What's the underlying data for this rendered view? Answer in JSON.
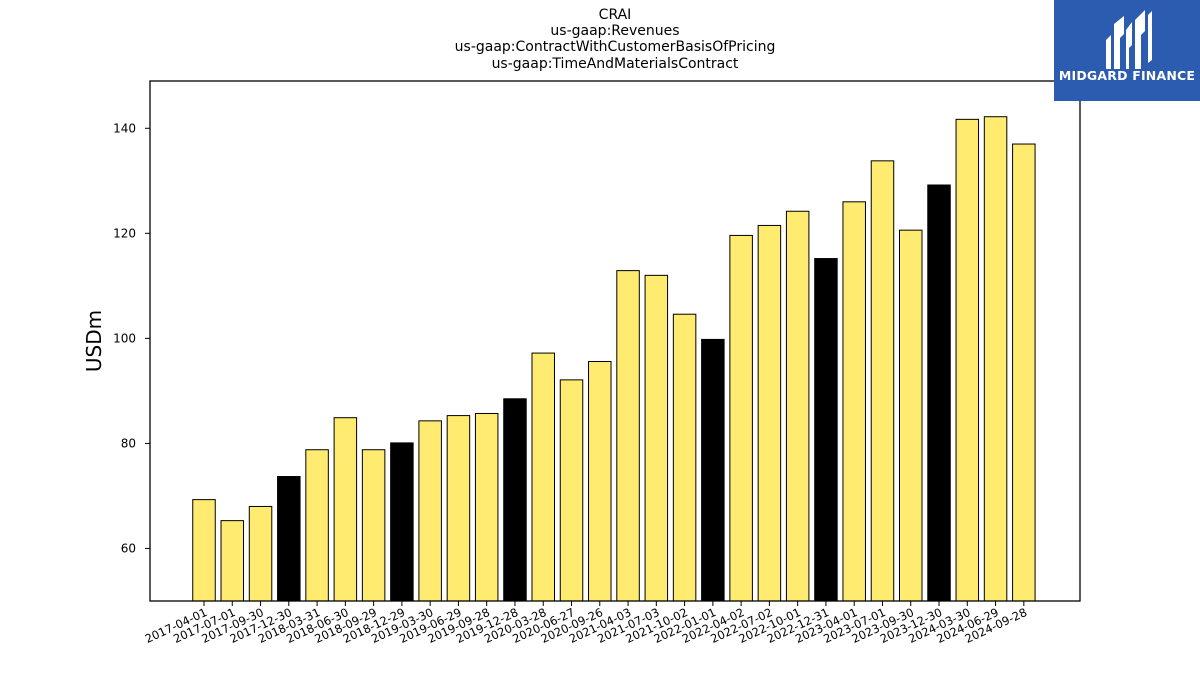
{
  "chart_data": {
    "type": "bar",
    "title_lines": [
      "CRAI",
      "us-gaap:Revenues",
      "us-gaap:ContractWithCustomerBasisOfPricing",
      "us-gaap:TimeAndMaterialsContract"
    ],
    "ylabel": "USDm",
    "xlabel": "",
    "ylim": [
      50,
      149
    ],
    "yticks": [
      60,
      80,
      100,
      120,
      140
    ],
    "grid": false,
    "colors": {
      "quarter": "#ffeb70",
      "year_end": "#000000",
      "edge": "#000000"
    },
    "categories": [
      "2017-04-01",
      "2017-07-01",
      "2017-09-30",
      "2017-12-30",
      "2018-03-31",
      "2018-06-30",
      "2018-09-29",
      "2018-12-29",
      "2019-03-30",
      "2019-06-29",
      "2019-09-28",
      "2019-12-28",
      "2020-03-28",
      "2020-06-27",
      "2020-09-26",
      "2021-04-03",
      "2021-07-03",
      "2021-10-02",
      "2022-01-01",
      "2022-04-02",
      "2022-07-02",
      "2022-10-01",
      "2022-12-31",
      "2023-04-01",
      "2023-07-01",
      "2023-09-30",
      "2023-12-30",
      "2024-03-30",
      "2024-06-29",
      "2024-09-28"
    ],
    "values": [
      69.3,
      65.3,
      68.0,
      73.7,
      78.8,
      84.9,
      78.8,
      80.1,
      84.3,
      85.3,
      85.7,
      88.5,
      97.2,
      92.1,
      95.6,
      112.9,
      112.0,
      104.6,
      99.8,
      119.6,
      121.5,
      124.2,
      115.2,
      126.0,
      133.8,
      120.6,
      129.2,
      141.7,
      142.2,
      137.0
    ],
    "highlight_indices": [
      3,
      7,
      11,
      18,
      22,
      26
    ]
  },
  "logo": {
    "text": "MIDGARD FINANCE",
    "icon": "midgard-logo-icon",
    "background": "#2b5caf"
  }
}
